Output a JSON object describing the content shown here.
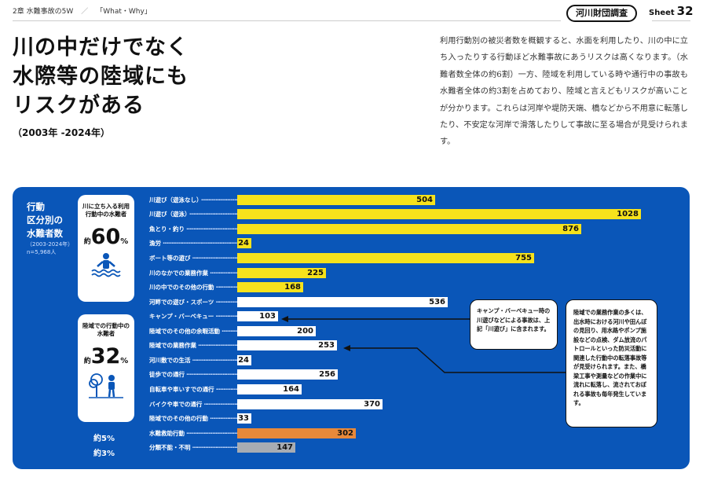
{
  "header": {
    "chapter": "2章 水難事故の5W",
    "section": "「What・Why」",
    "org": "河川財団調査",
    "sheet_label": "Sheet",
    "sheet_number": "32"
  },
  "headline": {
    "line1": "川の中だけでなく",
    "line2": "水際等の陸域にも",
    "line3": "リスクがある",
    "period": "（2003年 -2024年）"
  },
  "lead_text": "利用行動別の被災者数を概観すると、水面を利用したり、川の中に立ち入ったりする行動ほど水難事故にあうリスクは高くなります。（水難者数全体の約6割）一方、陸域を利用している時や通行中の事故も水難者全体の約3割を占めており、陸域と言えどもリスクが高いことが分かります。これらは河岸や堤防天端、橋などから不用意に転落したり、不安定な河岸で滑落したりして事故に至る場合が見受けられます。",
  "panel": {
    "title_1": "行動",
    "title_2": "区分別の",
    "title_3": "水難者数",
    "subtitle": "（2003-2024年）",
    "total": "n=5,968人"
  },
  "categories": {
    "water": {
      "label": "川に立ち入る利用行動中の水難者",
      "prefix": "約",
      "percent": "60",
      "unit": "%"
    },
    "land": {
      "label": "陸域での行動中の水難者",
      "prefix": "約",
      "percent": "32",
      "unit": "%"
    },
    "rescue_pct": "約5%",
    "unknown_pct": "約3%"
  },
  "colors": {
    "panel": "#0a56b8",
    "water": "#f6e21c",
    "land": "#ffffff",
    "rescue": "#e8893a",
    "unknown": "#a7acb3"
  },
  "chart_data": {
    "type": "bar",
    "orientation": "horizontal",
    "title": "行動区分別の水難者数",
    "unit": "人",
    "max": 1028,
    "categories": [
      "川遊び（遊泳なし）",
      "川遊び（遊泳）",
      "魚とり・釣り",
      "漁労",
      "ボート等の遊び",
      "川のなかでの業務作業",
      "川の中でのその他の行動",
      "河畔での遊び・スポーツ",
      "キャンプ・バーベキュー",
      "陸域でのその他の余暇活動",
      "陸域での業務作業",
      "河川敷での生活",
      "徒歩での通行",
      "自転車や車いすでの通行",
      "バイクや車での通行",
      "陸域でのその他の行動",
      "水難救助行動",
      "分類不能・不明"
    ],
    "values": [
      504,
      1028,
      876,
      24,
      755,
      225,
      168,
      536,
      103,
      200,
      253,
      24,
      256,
      164,
      370,
      33,
      302,
      147
    ],
    "groups": [
      "water",
      "water",
      "water",
      "water",
      "water",
      "water",
      "water",
      "land",
      "land",
      "land",
      "land",
      "land",
      "land",
      "land",
      "land",
      "land",
      "rescue",
      "unknown"
    ]
  },
  "callouts": {
    "camp": "キャンプ・バーベキュー時の川遊びなどによる事故は、上記「川遊び」に含まれます。",
    "work": "陸域での業務作業の多くは、出水時における河川や田んぼの見回り、用水路やポンプ施設などの点検、ダム放流のパトロールといった防災活動に関連した行動中の転落事故等が見受けられます。また、橋梁工事や測量などの作業中に流れに転落し、流されておぼれる事故も毎年発生しています。"
  }
}
